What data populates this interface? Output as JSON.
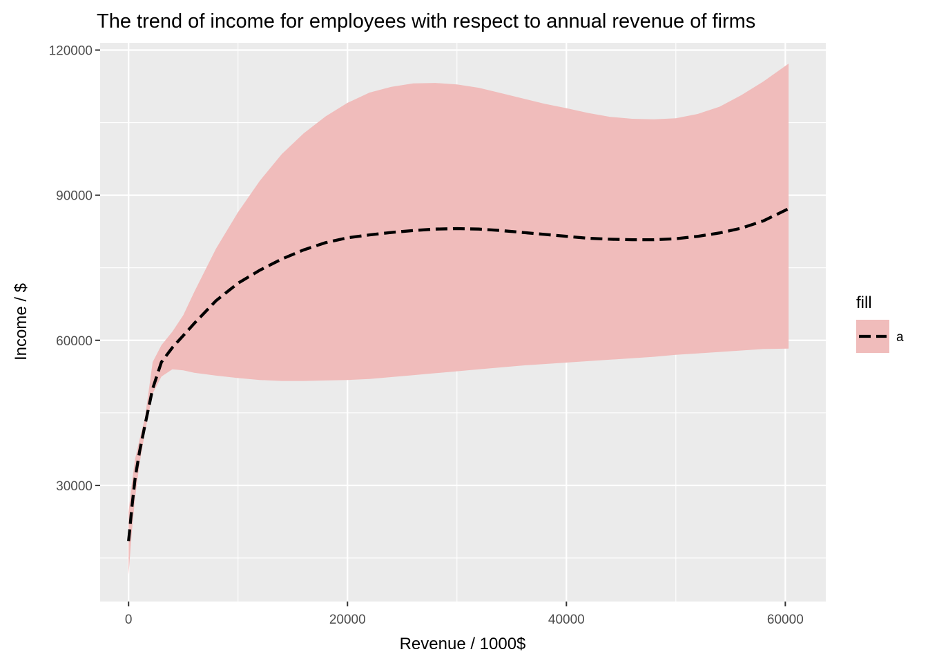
{
  "chart_data": {
    "type": "line",
    "title": "The trend of income for employees with respect to annual revenue of firms",
    "xlabel": "Revenue / 1000$",
    "ylabel": "Income / $",
    "xlim": [
      -2600,
      63700
    ],
    "ylim": [
      6000,
      121500
    ],
    "x_ticks": [
      0,
      20000,
      40000,
      60000
    ],
    "x_tick_labels": [
      "0",
      "20000",
      "40000",
      "60000"
    ],
    "y_ticks": [
      30000,
      60000,
      90000,
      120000
    ],
    "y_tick_labels": [
      "30000",
      "60000",
      "90000",
      "120000"
    ],
    "grid": true,
    "legend": {
      "title": "fill",
      "position": "right",
      "entries": [
        {
          "label": "a",
          "fill": "#f0bcbb",
          "line_color": "#000000",
          "line_style": "dashed"
        }
      ]
    },
    "series": [
      {
        "name": "a",
        "line_style": "dashed",
        "line_color": "#000000",
        "band_color": "#f0bcbb",
        "x": [
          0,
          100,
          300,
          600,
          1000,
          1500,
          2200,
          3000,
          4000,
          5000,
          6000,
          8000,
          10000,
          12000,
          14000,
          16000,
          18000,
          20000,
          22000,
          24000,
          26000,
          28000,
          30000,
          32000,
          34000,
          36000,
          38000,
          40000,
          42000,
          44000,
          46000,
          48000,
          50000,
          52000,
          54000,
          56000,
          58000,
          60300
        ],
        "y": [
          18500,
          20700,
          25500,
          31500,
          37000,
          42500,
          50000,
          55500,
          58500,
          61000,
          63500,
          68200,
          71800,
          74500,
          76800,
          78700,
          80200,
          81200,
          81800,
          82300,
          82700,
          83000,
          83100,
          83000,
          82700,
          82300,
          81900,
          81500,
          81100,
          80900,
          80800,
          80800,
          81000,
          81500,
          82200,
          83200,
          84700,
          87200
        ],
        "upper": [
          24500,
          26500,
          30500,
          35500,
          39500,
          44000,
          55500,
          59000,
          61800,
          65200,
          70000,
          79000,
          86500,
          93000,
          98500,
          102800,
          106300,
          109100,
          111200,
          112400,
          113100,
          113200,
          112900,
          112200,
          111100,
          110000,
          108900,
          108000,
          107000,
          106200,
          105800,
          105700,
          105900,
          106800,
          108300,
          110700,
          113500,
          117200
        ],
        "lower": [
          11500,
          14500,
          20500,
          27500,
          34500,
          41000,
          49000,
          52500,
          54000,
          53800,
          53300,
          52700,
          52200,
          51800,
          51600,
          51600,
          51700,
          51800,
          52000,
          52400,
          52800,
          53200,
          53600,
          54000,
          54400,
          54800,
          55100,
          55400,
          55700,
          56000,
          56300,
          56600,
          57000,
          57300,
          57600,
          57900,
          58200,
          58300
        ]
      }
    ]
  }
}
